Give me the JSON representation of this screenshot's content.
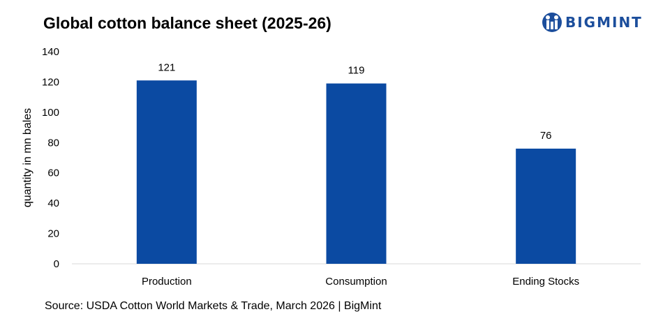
{
  "logo": {
    "text": "BIGMINT",
    "brand_color": "#1c4e9c",
    "icon": "bigmint-logo-icon"
  },
  "source": "Source: USDA Cotton World Markets & Trade, March 2026 | BigMint",
  "chart_data": {
    "type": "bar",
    "title": "Global cotton balance sheet (2025-26)",
    "xlabel": "",
    "ylabel": "quantity in mn bales",
    "categories": [
      "Production",
      "Consumption",
      "Ending Stocks"
    ],
    "values": [
      121,
      119,
      76
    ],
    "data_labels": [
      "121",
      "119",
      "76"
    ],
    "ylim": [
      0,
      140
    ],
    "yticks": [
      "0",
      "20",
      "40",
      "60",
      "80",
      "100",
      "120",
      "140"
    ],
    "bar_color": "#0b4aa2",
    "grid": false,
    "legend": "none"
  }
}
